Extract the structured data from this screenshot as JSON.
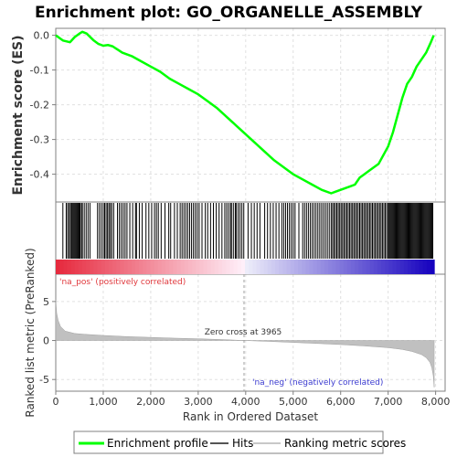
{
  "chart_data": {
    "type": "line",
    "title": "Enrichment plot: GO_ORGANELLE_ASSEMBLY",
    "xlabel": "Rank in Ordered Dataset",
    "ylabel_top": "Enrichment score (ES)",
    "ylabel_bottom": "Ranked list metric (PreRanked)",
    "x_ticks": [
      0,
      1000,
      2000,
      3000,
      4000,
      5000,
      6000,
      7000,
      8000
    ],
    "x_tick_labels": [
      "0",
      "1,000",
      "2,000",
      "3,000",
      "4,000",
      "5,000",
      "6,000",
      "7,000",
      "8,000"
    ],
    "xlim": [
      0,
      8200
    ],
    "es_ticks": [
      0.0,
      -0.1,
      -0.2,
      -0.3,
      -0.4
    ],
    "es_tick_labels": [
      "0.0",
      "-0.1",
      "-0.2",
      "-0.3",
      "-0.4"
    ],
    "es_ylim": [
      -0.48,
      0.02
    ],
    "metric_ticks": [
      5,
      0,
      -5
    ],
    "metric_tick_labels": [
      "5",
      "0",
      "-5"
    ],
    "metric_ylim": [
      -6.5,
      8.5
    ],
    "enrichment_profile": {
      "x": [
        0,
        150,
        300,
        400,
        500,
        560,
        650,
        800,
        900,
        1000,
        1100,
        1200,
        1400,
        1600,
        1800,
        2000,
        2200,
        2400,
        2600,
        2800,
        3000,
        3200,
        3400,
        3600,
        3800,
        4000,
        4200,
        4400,
        4600,
        4800,
        5000,
        5200,
        5400,
        5600,
        5800,
        5900,
        6000,
        6100,
        6200,
        6300,
        6400,
        6500,
        6600,
        6700,
        6800,
        6900,
        7000,
        7100,
        7200,
        7300,
        7400,
        7500,
        7600,
        7700,
        7800,
        7900,
        7960
      ],
      "y": [
        0.0,
        -0.015,
        -0.02,
        -0.005,
        0.005,
        0.01,
        0.005,
        -0.015,
        -0.025,
        -0.03,
        -0.028,
        -0.032,
        -0.05,
        -0.06,
        -0.075,
        -0.09,
        -0.105,
        -0.125,
        -0.14,
        -0.155,
        -0.17,
        -0.19,
        -0.21,
        -0.235,
        -0.26,
        -0.285,
        -0.31,
        -0.335,
        -0.36,
        -0.38,
        -0.4,
        -0.415,
        -0.43,
        -0.445,
        -0.455,
        -0.45,
        -0.445,
        -0.44,
        -0.435,
        -0.43,
        -0.41,
        -0.4,
        -0.39,
        -0.38,
        -0.37,
        -0.345,
        -0.32,
        -0.28,
        -0.23,
        -0.18,
        -0.14,
        -0.12,
        -0.09,
        -0.07,
        -0.05,
        -0.02,
        0.0
      ]
    },
    "hits": [
      150,
      220,
      250,
      280,
      310,
      330,
      350,
      370,
      390,
      410,
      430,
      450,
      470,
      490,
      510,
      540,
      560,
      600,
      640,
      680,
      720,
      880,
      920,
      960,
      1000,
      1030,
      1060,
      1090,
      1120,
      1150,
      1180,
      1220,
      1300,
      1340,
      1380,
      1420,
      1460,
      1500,
      1560,
      1620,
      1680,
      1700,
      1760,
      1820,
      1900,
      1960,
      2020,
      2080,
      2120,
      2160,
      2220,
      2300,
      2380,
      2420,
      2500,
      2560,
      2620,
      2660,
      2700,
      2740,
      2780,
      2820,
      2860,
      2900,
      2940,
      2980,
      3020,
      3080,
      3150,
      3200,
      3260,
      3320,
      3380,
      3440,
      3500,
      3560,
      3600,
      3640,
      3680,
      3700,
      3740,
      3780,
      3800,
      3840,
      3880,
      3920,
      3960,
      4050,
      4120,
      4180,
      4240,
      4300,
      4400,
      4460,
      4520,
      4580,
      4640,
      4700,
      4760,
      4800,
      4840,
      4880,
      4920,
      4960,
      5000,
      5040,
      5120,
      5200,
      5240,
      5280,
      5320,
      5360,
      5400,
      5440,
      5480,
      5520,
      5560,
      5600,
      5640,
      5680,
      5720,
      5760,
      5800,
      5830,
      5860,
      5890,
      5920,
      5950,
      5980,
      6010,
      6040,
      6070,
      6100,
      6130,
      6160,
      6190,
      6220,
      6250,
      6280,
      6310,
      6340,
      6370,
      6400,
      6430,
      6460,
      6490,
      6520,
      6550,
      6580,
      6610,
      6640,
      6670,
      6700,
      6730,
      6760,
      6790,
      6820,
      6850,
      6880,
      6910,
      6940,
      6970,
      7000,
      7020,
      7040,
      7060,
      7080,
      7100,
      7120,
      7140,
      7160,
      7180,
      7200,
      7220,
      7240,
      7260,
      7280,
      7300,
      7320,
      7340,
      7360,
      7380,
      7400,
      7420,
      7440,
      7460,
      7480,
      7500,
      7520,
      7540,
      7560,
      7580,
      7600,
      7620,
      7640,
      7660,
      7680,
      7700,
      7720,
      7740,
      7760,
      7780,
      7800,
      7820,
      7840,
      7860,
      7880,
      7900,
      7920,
      7940
    ],
    "ranked_metric": {
      "x": [
        0,
        20,
        50,
        100,
        200,
        400,
        600,
        1000,
        1500,
        2000,
        2500,
        3000,
        3500,
        3965,
        4500,
        5000,
        5500,
        6000,
        6500,
        7000,
        7300,
        7500,
        7700,
        7800,
        7880,
        7920,
        7950,
        7970
      ],
      "y": [
        5.2,
        3.5,
        2.6,
        1.8,
        1.2,
        0.9,
        0.8,
        0.65,
        0.5,
        0.4,
        0.3,
        0.22,
        0.12,
        0.0,
        -0.12,
        -0.25,
        -0.38,
        -0.52,
        -0.7,
        -0.92,
        -1.15,
        -1.4,
        -1.8,
        -2.2,
        -2.8,
        -3.5,
        -4.5,
        -6.0
      ]
    },
    "annotations": {
      "pos_label": "'na_pos' (positively correlated)",
      "neg_label": "'na_neg' (negatively correlated)",
      "zero_cross": "Zero cross at 3965",
      "zero_cross_x": 3965
    },
    "legend": {
      "placement": "bottom",
      "entries": [
        {
          "name": "Enrichment profile",
          "color": "#00ff00"
        },
        {
          "name": "Hits",
          "color": "#555555"
        },
        {
          "name": "Ranking metric scores",
          "color": "#c8c8c8"
        }
      ]
    },
    "colors": {
      "profile": "#00ff00",
      "grid": "#e0e0e0",
      "pos_text": "#e0383c",
      "neg_text": "#3a3ad0",
      "metric_fill": "#c0c0c0"
    }
  }
}
